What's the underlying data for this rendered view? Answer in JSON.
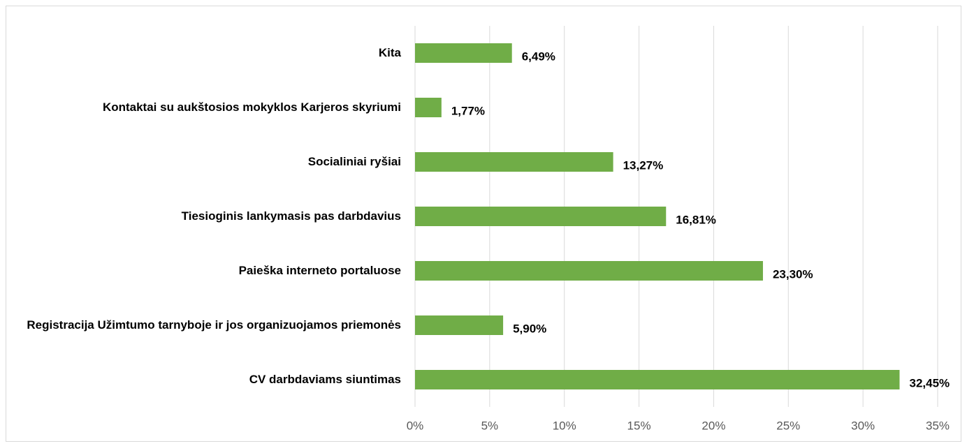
{
  "chart_data": {
    "type": "barh",
    "categories": [
      "Kita",
      "Kontaktai su aukštosios mokyklos Karjeros skyriumi",
      "Socialiniai ryšiai",
      "Tiesioginis lankymasis pas darbdavius",
      "Paieška interneto portaluose",
      "Registracija Užimtumo tarnyboje ir jos organizuojamos priemonės",
      "CV darbdaviams siuntimas"
    ],
    "values": [
      6.49,
      1.77,
      13.27,
      16.81,
      23.3,
      5.9,
      32.45
    ],
    "value_labels": [
      "6,49%",
      "1,77%",
      "13,27%",
      "16,81%",
      "23,30%",
      "5,90%",
      "32,45%"
    ],
    "color": "#70ad47",
    "xlim": [
      0,
      35
    ],
    "xticks": [
      {
        "value": 0,
        "label": "0%"
      },
      {
        "value": 5,
        "label": "5%"
      },
      {
        "value": 10,
        "label": "10%"
      },
      {
        "value": 15,
        "label": "15%"
      },
      {
        "value": 20,
        "label": "20%"
      },
      {
        "value": 25,
        "label": "25%"
      },
      {
        "value": 30,
        "label": "30%"
      },
      {
        "value": 35,
        "label": "35%"
      }
    ],
    "grid": true
  }
}
